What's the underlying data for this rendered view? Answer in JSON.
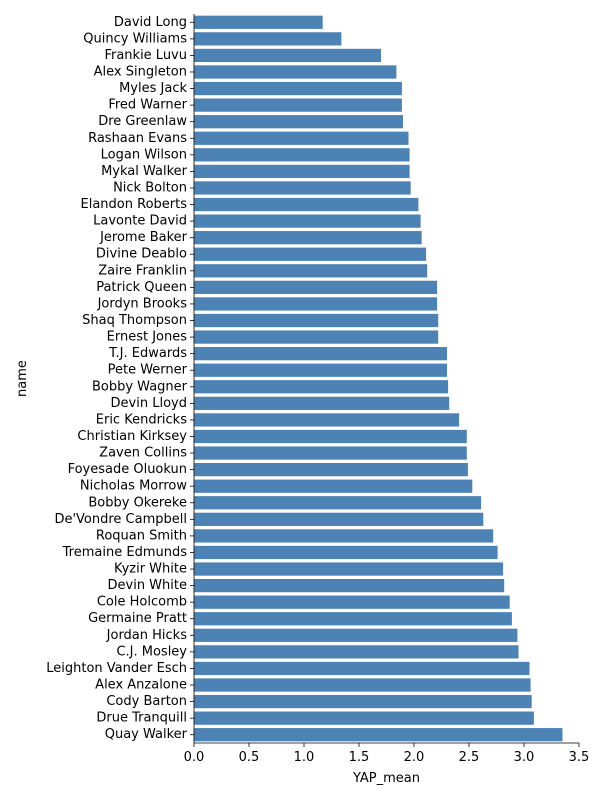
{
  "chart_data": {
    "type": "bar",
    "orientation": "horizontal",
    "xlabel": "YAP_mean",
    "ylabel": "name",
    "xlim": [
      0,
      3.5
    ],
    "xticks": [
      "0.0",
      "0.5",
      "1.0",
      "1.5",
      "2.0",
      "2.5",
      "3.0",
      "3.5"
    ],
    "grid": false,
    "bar_color": "#4c82b4",
    "categories": [
      "David Long",
      "Quincy Williams",
      "Frankie Luvu",
      "Alex Singleton",
      "Myles Jack",
      "Fred Warner",
      "Dre Greenlaw",
      "Rashaan Evans",
      "Logan Wilson",
      "Mykal Walker",
      "Nick Bolton",
      "Elandon Roberts",
      "Lavonte David",
      "Jerome Baker",
      "Divine Deablo",
      "Zaire Franklin",
      "Patrick Queen",
      "Jordyn Brooks",
      "Shaq Thompson",
      "Ernest Jones",
      "T.J. Edwards",
      "Pete Werner",
      "Bobby Wagner",
      "Devin Lloyd",
      "Eric Kendricks",
      "Christian Kirksey",
      "Zaven Collins",
      "Foyesade Oluokun",
      "Nicholas Morrow",
      "Bobby Okereke",
      "De'Vondre Campbell",
      "Roquan Smith",
      "Tremaine Edmunds",
      "Kyzir White",
      "Devin White",
      "Cole Holcomb",
      "Germaine Pratt",
      "Jordan Hicks",
      "C.J. Mosley",
      "Leighton Vander Esch",
      "Alex Anzalone",
      "Cody Barton",
      "Drue Tranquill",
      "Quay Walker"
    ],
    "values": [
      1.17,
      1.34,
      1.7,
      1.84,
      1.89,
      1.89,
      1.9,
      1.95,
      1.96,
      1.96,
      1.97,
      2.04,
      2.06,
      2.07,
      2.11,
      2.12,
      2.21,
      2.21,
      2.22,
      2.22,
      2.3,
      2.3,
      2.31,
      2.32,
      2.41,
      2.48,
      2.48,
      2.49,
      2.53,
      2.61,
      2.63,
      2.72,
      2.76,
      2.81,
      2.82,
      2.87,
      2.89,
      2.94,
      2.95,
      3.05,
      3.06,
      3.07,
      3.09,
      3.35
    ]
  }
}
